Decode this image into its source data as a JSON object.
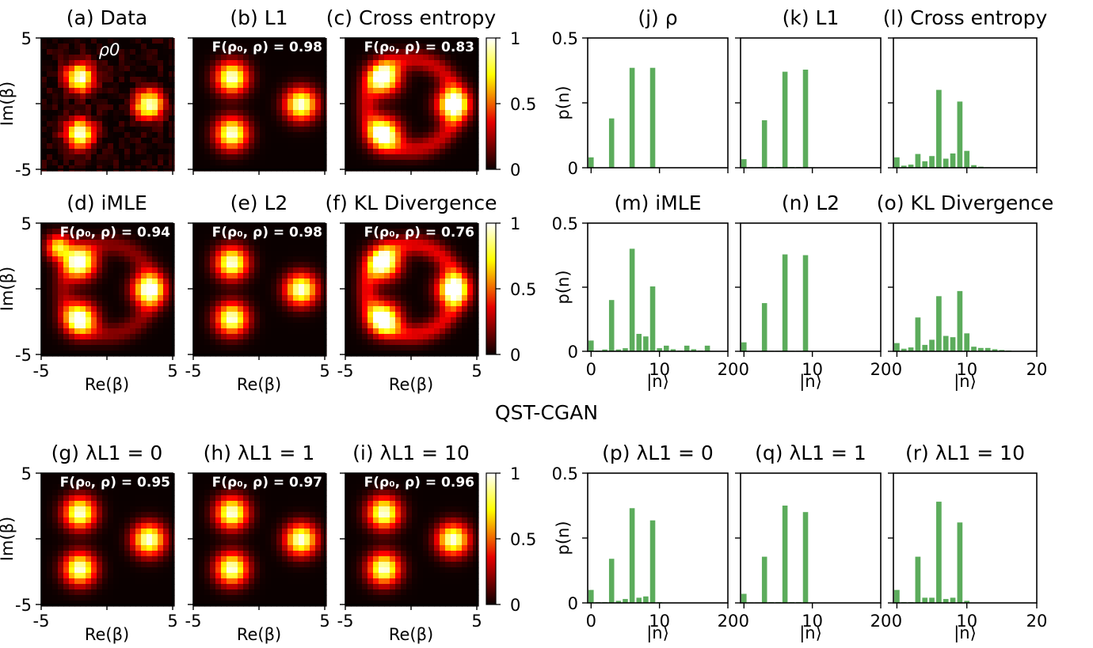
{
  "section_title": "QST-CGAN",
  "colors": {
    "bar": "#5cac5c",
    "frame": "#000000",
    "cmap": "hot"
  },
  "chart_data": [
    {
      "type": "heatmap",
      "id": "a",
      "title": "(a) Data",
      "annotation": "ρ0",
      "noisy": true,
      "xlim": [
        -5,
        5
      ],
      "ylim": [
        -5,
        5
      ],
      "row": 0,
      "col": 0
    },
    {
      "type": "heatmap",
      "id": "b",
      "title": "(b) L1",
      "fidelity": "0.98",
      "xlim": [
        -5,
        5
      ],
      "ylim": [
        -5,
        5
      ],
      "row": 0,
      "col": 1
    },
    {
      "type": "heatmap",
      "id": "c",
      "title": "(c) Cross entropy",
      "fidelity": "0.83",
      "ring": 0.28,
      "xlim": [
        -5,
        5
      ],
      "ylim": [
        -5,
        5
      ],
      "row": 0,
      "col": 2
    },
    {
      "type": "heatmap",
      "id": "d",
      "title": "(d) iMLE",
      "fidelity": "0.94",
      "ring": 0.18,
      "hotspot": true,
      "xlim": [
        -5,
        5
      ],
      "ylim": [
        -5,
        5
      ],
      "row": 1,
      "col": 0
    },
    {
      "type": "heatmap",
      "id": "e",
      "title": "(e) L2",
      "fidelity": "0.98",
      "xlim": [
        -5,
        5
      ],
      "ylim": [
        -5,
        5
      ],
      "row": 1,
      "col": 1
    },
    {
      "type": "heatmap",
      "id": "f",
      "title": "(f) KL Divergence",
      "fidelity": "0.76",
      "ring": 0.32,
      "xlim": [
        -5,
        5
      ],
      "ylim": [
        -5,
        5
      ],
      "row": 1,
      "col": 2
    },
    {
      "type": "heatmap",
      "id": "g",
      "title": "(g) λL1 = 0",
      "fidelity": "0.95",
      "xlim": [
        -5,
        5
      ],
      "ylim": [
        -5,
        5
      ],
      "row": 2,
      "col": 0
    },
    {
      "type": "heatmap",
      "id": "h",
      "title": "(h) λL1 = 1",
      "fidelity": "0.97",
      "xlim": [
        -5,
        5
      ],
      "ylim": [
        -5,
        5
      ],
      "row": 2,
      "col": 1
    },
    {
      "type": "heatmap",
      "id": "i",
      "title": "(i) λL1 = 10",
      "fidelity": "0.96",
      "xlim": [
        -5,
        5
      ],
      "ylim": [
        -5,
        5
      ],
      "row": 2,
      "col": 2
    },
    {
      "type": "bar",
      "id": "j",
      "title": "(j) ρ",
      "ylabel": "p(n)",
      "xlim": [
        -0.5,
        20
      ],
      "ylim": [
        0,
        0.5
      ],
      "row": 0,
      "col": 0,
      "values": [
        0.04,
        0,
        0,
        0.19,
        0,
        0,
        0.385,
        0,
        0,
        0.385,
        0,
        0,
        0,
        0,
        0,
        0,
        0,
        0,
        0,
        0
      ]
    },
    {
      "type": "bar",
      "id": "k",
      "title": "(k) L1",
      "xlim": [
        -0.5,
        20
      ],
      "ylim": [
        0,
        0.5
      ],
      "row": 0,
      "col": 1,
      "values": [
        0.033,
        0.002,
        0.002,
        0.183,
        0.003,
        0.003,
        0.37,
        0.003,
        0.003,
        0.378,
        0.002,
        0,
        0,
        0,
        0,
        0,
        0,
        0,
        0,
        0
      ]
    },
    {
      "type": "bar",
      "id": "l",
      "title": "(l) Cross entropy",
      "xlim": [
        -0.5,
        20
      ],
      "ylim": [
        0,
        0.5
      ],
      "row": 0,
      "col": 2,
      "values": [
        0.04,
        0.008,
        0.012,
        0.053,
        0.025,
        0.045,
        0.3,
        0.035,
        0.055,
        0.255,
        0.065,
        0.01,
        0.004,
        0.002,
        0.001,
        0,
        0,
        0,
        0,
        0
      ]
    },
    {
      "type": "bar",
      "id": "m",
      "title": "(m) iMLE",
      "ylabel": "p(n)",
      "xlim": [
        -0.5,
        20
      ],
      "ylim": [
        0,
        0.5
      ],
      "row": 1,
      "col": 0,
      "values": [
        0.042,
        0.003,
        0.007,
        0.2,
        0.007,
        0.012,
        0.4,
        0.068,
        0.058,
        0.253,
        0.012,
        0.022,
        0.008,
        0.003,
        0.022,
        0.008,
        0.003,
        0.022,
        0,
        0
      ]
    },
    {
      "type": "bar",
      "id": "n",
      "title": "(n) L2",
      "xlim": [
        -0.5,
        20
      ],
      "ylim": [
        0,
        0.5
      ],
      "row": 1,
      "col": 1,
      "values": [
        0.035,
        0.001,
        0.001,
        0.188,
        0.002,
        0.002,
        0.378,
        0.002,
        0.002,
        0.375,
        0.001,
        0,
        0,
        0,
        0,
        0,
        0,
        0,
        0,
        0
      ]
    },
    {
      "type": "bar",
      "id": "o",
      "title": "(o) KL Divergence",
      "xlim": [
        -0.5,
        20
      ],
      "ylim": [
        0,
        0.5
      ],
      "row": 1,
      "col": 2,
      "values": [
        0.032,
        0.01,
        0.015,
        0.132,
        0.025,
        0.045,
        0.215,
        0.06,
        0.055,
        0.235,
        0.07,
        0.018,
        0.013,
        0.013,
        0.008,
        0.005,
        0.003,
        0.001,
        0,
        0
      ]
    },
    {
      "type": "bar",
      "id": "p",
      "title": "(p) λL1 = 0",
      "ylabel": "p(n)",
      "xlim": [
        -0.5,
        20
      ],
      "ylim": [
        0,
        0.5
      ],
      "row": 2,
      "col": 0,
      "values": [
        0.05,
        0.003,
        0.003,
        0.17,
        0.008,
        0.015,
        0.365,
        0.02,
        0.025,
        0.318,
        0.003,
        0,
        0,
        0,
        0,
        0,
        0,
        0,
        0,
        0
      ]
    },
    {
      "type": "bar",
      "id": "q",
      "title": "(q) λL1 = 1",
      "xlim": [
        -0.5,
        20
      ],
      "ylim": [
        0,
        0.5
      ],
      "row": 2,
      "col": 1,
      "values": [
        0.035,
        0.002,
        0.002,
        0.178,
        0.003,
        0.003,
        0.375,
        0.003,
        0.003,
        0.35,
        0.002,
        0,
        0,
        0,
        0,
        0,
        0,
        0,
        0,
        0
      ]
    },
    {
      "type": "bar",
      "id": "r",
      "title": "(r) λL1 = 10",
      "xlim": [
        -0.5,
        20
      ],
      "ylim": [
        0,
        0.5
      ],
      "row": 2,
      "col": 2,
      "values": [
        0.05,
        0.003,
        0.003,
        0.178,
        0.02,
        0.02,
        0.39,
        0.015,
        0.02,
        0.31,
        0.008,
        0,
        0,
        0,
        0,
        0,
        0,
        0,
        0,
        0
      ]
    }
  ],
  "axes": {
    "heat_xticks": [
      "-5",
      "5"
    ],
    "heat_yticks": [
      "5",
      "-5"
    ],
    "heat_xlabel": "Re(β)",
    "heat_ylabel": "Im(β)",
    "colorbar_ticks": [
      "1",
      "0.5",
      "0"
    ],
    "bar_xticks": [
      "0",
      "10",
      "20"
    ],
    "bar_yticks": [
      "0.5",
      "0"
    ],
    "bar_xlabel": "|n⟩",
    "bar_ylabel": "p(n)"
  }
}
